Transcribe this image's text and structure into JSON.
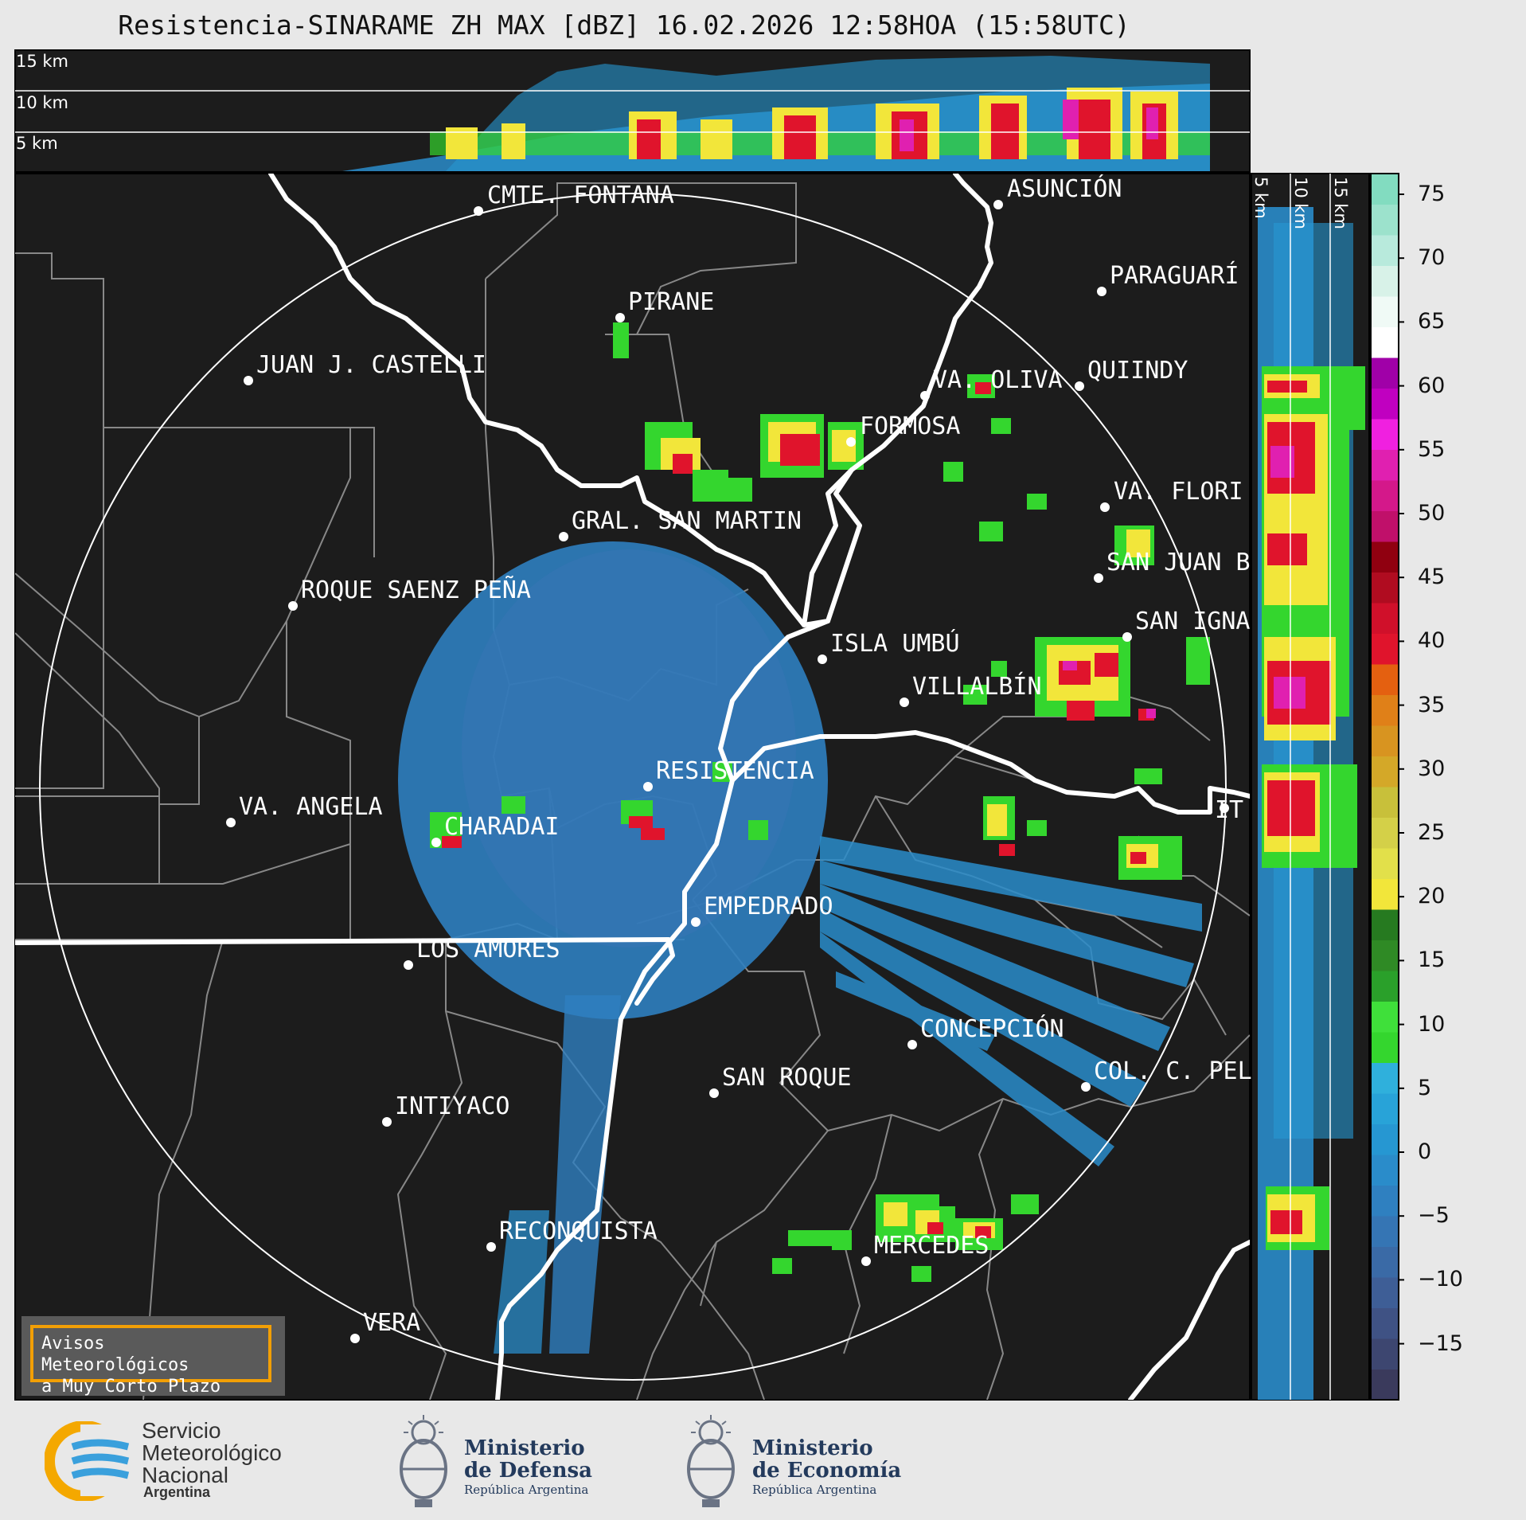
{
  "title": "Resistencia-SINARAME ZH MAX [dBZ] 16.02.2026 12:58HOA (15:58UTC)",
  "top_panel": {
    "heights": [
      "15 km",
      "10 km",
      "5 km"
    ]
  },
  "side_panel": {
    "heights": [
      "5 km",
      "10 km",
      "15 km"
    ]
  },
  "map": {
    "center_label": "RESISTENCIA",
    "places": [
      {
        "name": "CMTE. FONTANA"
      },
      {
        "name": "ASUNCIÓN"
      },
      {
        "name": "PARAGUARÍ"
      },
      {
        "name": "PIRANE"
      },
      {
        "name": "JUAN J. CASTELLI"
      },
      {
        "name": "VA. OLIVA"
      },
      {
        "name": "QUIINDY"
      },
      {
        "name": "FORMOSA"
      },
      {
        "name": "VA. FLORI"
      },
      {
        "name": "GRAL. SAN MARTIN"
      },
      {
        "name": "SAN JUAN B"
      },
      {
        "name": "ROQUE SAENZ PEÑA"
      },
      {
        "name": "SAN IGNA"
      },
      {
        "name": "ISLA UMBÚ"
      },
      {
        "name": "VILLALBÍN"
      },
      {
        "name": "RESISTENCIA"
      },
      {
        "name": "VA. ANGELA"
      },
      {
        "name": "CHARADAI"
      },
      {
        "name": "IT"
      },
      {
        "name": "EMPEDRADO"
      },
      {
        "name": "LOS AMORES"
      },
      {
        "name": "CONCEPCIÓN"
      },
      {
        "name": "SAN ROQUE"
      },
      {
        "name": "COL. C. PEL"
      },
      {
        "name": "INTIYACO"
      },
      {
        "name": "RECONQUISTA"
      },
      {
        "name": "MERCEDES"
      },
      {
        "name": "VERA"
      }
    ]
  },
  "colorbar": {
    "unit": "dBZ",
    "ticks": [
      "75",
      "70",
      "65",
      "60",
      "55",
      "50",
      "45",
      "40",
      "35",
      "30",
      "25",
      "20",
      "15",
      "10",
      "5",
      "0",
      "−5",
      "−10",
      "−15"
    ],
    "colors": [
      "#3a3a5c",
      "#3d4670",
      "#3f5284",
      "#3e5e96",
      "#3a6aa6",
      "#3575b4",
      "#2f80c0",
      "#2a8cca",
      "#2697d2",
      "#28a3d8",
      "#2fb0dc",
      "#34d62e",
      "#3fe03a",
      "#2aa02a",
      "#2f8a25",
      "#267a20",
      "#f2e63a",
      "#e2e04a",
      "#d4d048",
      "#c8c03a",
      "#d4a828",
      "#d89420",
      "#e08018",
      "#e46010",
      "#e0142c",
      "#d0102a",
      "#b00c20",
      "#900010",
      "#c0106a",
      "#d4188a",
      "#e020b0",
      "#f020e0",
      "#c000c0",
      "#a000a8",
      "#ffffff",
      "#f0faf6",
      "#d8f2e8",
      "#b8eadc",
      "#9ce2cc",
      "#82dcc0"
    ]
  },
  "notice": {
    "line1": "Avisos Meteorológicos",
    "line2": "a Muy Corto Plazo"
  },
  "logos": {
    "smn": {
      "line1": "Servicio",
      "line2": "Meteorológico",
      "line3": "Nacional",
      "line4": "Argentina"
    },
    "defensa": {
      "line1": "Ministerio",
      "line2": "de Defensa",
      "line3": "República Argentina"
    },
    "economia": {
      "line1": "Ministerio",
      "line2": "de Economía",
      "line3": "República Argentina"
    }
  }
}
